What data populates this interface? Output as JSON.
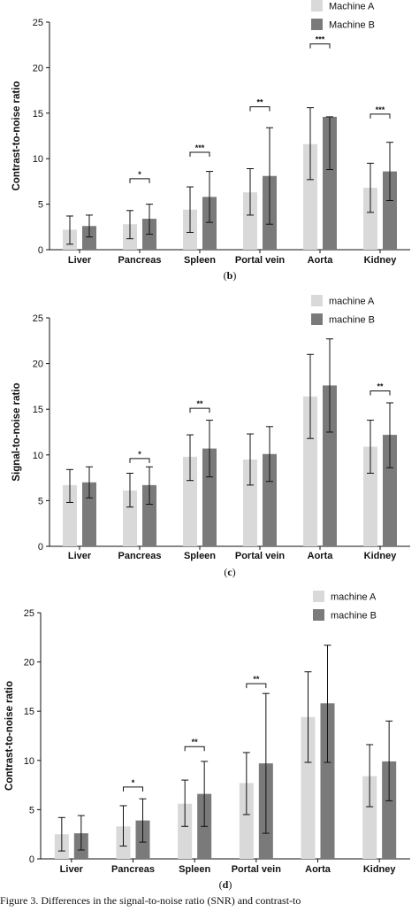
{
  "colors": {
    "machine_a": "#d9d9d9",
    "machine_b": "#7a7a7a"
  },
  "caption": "Figure 3. Differences in the signal-to-noise ratio (SNR) and contrast-to",
  "chart_data": [
    {
      "type": "bar",
      "panel_label": "b",
      "ylabel": "Contrast-to-noise ratio",
      "ylim": [
        0,
        25
      ],
      "yticks": [
        0,
        5,
        10,
        15,
        20,
        25
      ],
      "categories": [
        "Liver",
        "Pancreas",
        "Spleen",
        "Portal vein",
        "Aorta",
        "Kidney"
      ],
      "legend_position": "top-right",
      "series": [
        {
          "name": "Machine A",
          "values": [
            2.2,
            2.8,
            4.4,
            6.3,
            11.6,
            6.8
          ],
          "error_low": [
            0.6,
            1.2,
            1.9,
            3.8,
            7.7,
            4.1
          ],
          "error_high": [
            3.7,
            4.3,
            6.9,
            8.9,
            15.6,
            9.5
          ]
        },
        {
          "name": "Machine B",
          "values": [
            2.6,
            3.4,
            5.8,
            8.1,
            14.6,
            8.6
          ],
          "error_low": [
            1.4,
            1.7,
            3.0,
            2.8,
            8.8,
            5.4
          ],
          "error_high": [
            3.8,
            5.0,
            8.6,
            13.4,
            14.6,
            11.8
          ]
        }
      ],
      "significance": [
        {
          "category": "Pancreas",
          "label": "*",
          "y": 7.8
        },
        {
          "category": "Spleen",
          "label": "***",
          "y": 10.7
        },
        {
          "category": "Portal vein",
          "label": "**",
          "y": 15.7
        },
        {
          "category": "Aorta",
          "label": "***",
          "y": 22.6
        },
        {
          "category": "Kidney",
          "label": "***",
          "y": 14.9
        }
      ]
    },
    {
      "type": "bar",
      "panel_label": "c",
      "ylabel": "Signal-to-noise ratio",
      "ylim": [
        0,
        25
      ],
      "yticks": [
        0,
        5,
        10,
        15,
        20,
        25
      ],
      "categories": [
        "Liver",
        "Pancreas",
        "Spleen",
        "Portal vein",
        "Aorta",
        "Kidney"
      ],
      "legend_position": "top-right",
      "series": [
        {
          "name": "machine A",
          "values": [
            6.7,
            6.1,
            9.8,
            9.5,
            16.4,
            10.9
          ],
          "error_low": [
            4.8,
            4.3,
            7.2,
            6.7,
            11.8,
            8.0
          ],
          "error_high": [
            8.4,
            8.0,
            12.2,
            12.3,
            21.0,
            13.8
          ]
        },
        {
          "name": "machine B",
          "values": [
            7.0,
            6.7,
            10.7,
            10.1,
            17.6,
            12.2
          ],
          "error_low": [
            5.3,
            4.6,
            7.6,
            7.1,
            12.5,
            8.6
          ],
          "error_high": [
            8.7,
            8.7,
            13.8,
            13.1,
            22.7,
            15.7
          ]
        }
      ],
      "significance": [
        {
          "category": "Pancreas",
          "label": "*",
          "y": 9.6
        },
        {
          "category": "Spleen",
          "label": "**",
          "y": 15.1
        },
        {
          "category": "Kidney",
          "label": "**",
          "y": 17.0
        }
      ]
    },
    {
      "type": "bar",
      "panel_label": "d",
      "ylabel": "Contrast-to-noise ratio",
      "ylim": [
        0,
        25
      ],
      "yticks": [
        0,
        5,
        10,
        15,
        20,
        25
      ],
      "categories": [
        "Liver",
        "Pancreas",
        "Spleen",
        "Portal vein",
        "Aorta",
        "Kidney"
      ],
      "legend_position": "top-right",
      "series": [
        {
          "name": "machine A",
          "values": [
            2.5,
            3.3,
            5.6,
            7.7,
            14.4,
            8.4
          ],
          "error_low": [
            0.8,
            1.3,
            3.3,
            4.5,
            9.8,
            5.3
          ],
          "error_high": [
            4.2,
            5.4,
            8.0,
            10.8,
            19.0,
            11.6
          ]
        },
        {
          "name": "machine B",
          "values": [
            2.6,
            3.9,
            6.6,
            9.7,
            15.8,
            9.9
          ],
          "error_low": [
            0.9,
            1.7,
            3.3,
            2.6,
            9.8,
            5.9
          ],
          "error_high": [
            4.4,
            6.1,
            9.9,
            16.8,
            21.7,
            14.0
          ]
        }
      ],
      "significance": [
        {
          "category": "Pancreas",
          "label": "*",
          "y": 7.3
        },
        {
          "category": "Spleen",
          "label": "**",
          "y": 11.4
        },
        {
          "category": "Portal vein",
          "label": "**",
          "y": 17.8
        }
      ]
    }
  ]
}
